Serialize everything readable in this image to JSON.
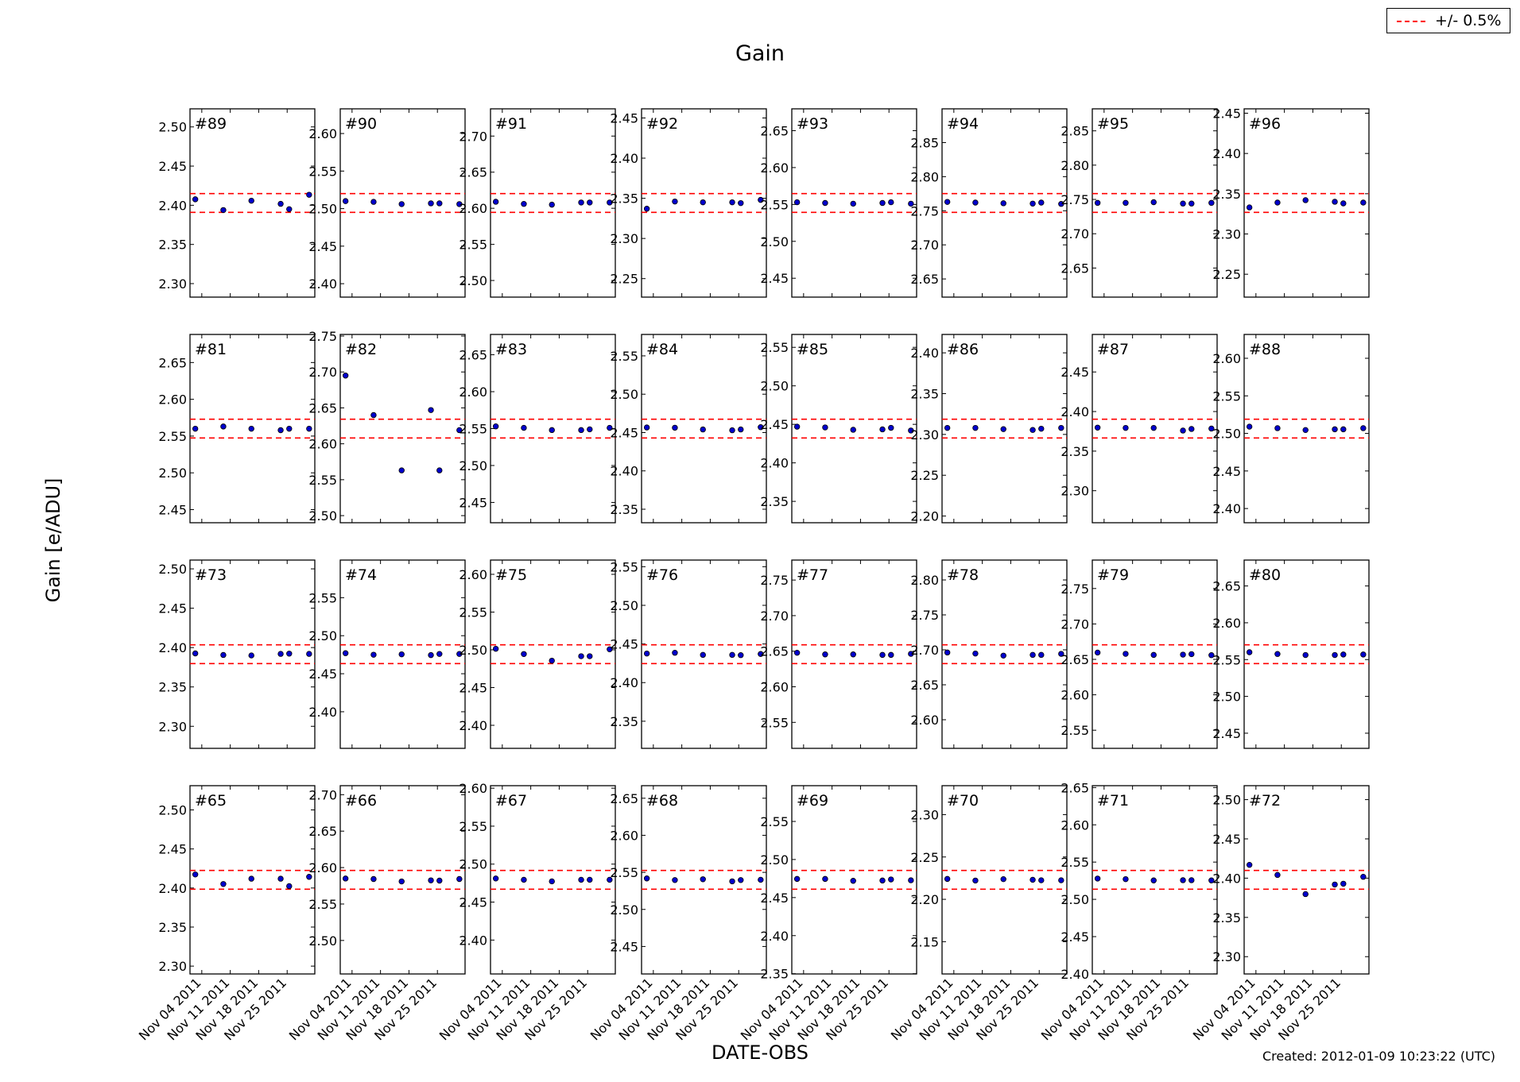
{
  "chart_data": {
    "type": "scatter",
    "title": "Gain",
    "xlabel": "DATE-OBS",
    "ylabel": "Gain [e/ADU]",
    "footer": "Created: 2012-01-09 10:23:22 (UTC)",
    "legend": {
      "label": "+/- 0.5%",
      "placement": "top-right",
      "color": "#ff0000"
    },
    "band_fraction": 0.005,
    "ylim_fraction": 0.05,
    "ytick_step": 0.05,
    "x_unit": "day of November 2011",
    "xlim": [
      1.1,
      31.8
    ],
    "x": [
      2.4,
      9.3,
      16.2,
      23.4,
      25.5,
      30.4
    ],
    "xticks": [
      {
        "value": 4,
        "label": "Nov 04 2011"
      },
      {
        "value": 11,
        "label": "Nov 11 2011"
      },
      {
        "value": 18,
        "label": "Nov 18 2011"
      },
      {
        "value": 25,
        "label": "Nov 25 2011"
      }
    ],
    "point_color": "#0000cc",
    "panels": [
      {
        "label": "#89",
        "values": [
          2.4076,
          2.3939,
          2.4058,
          2.4018,
          2.395,
          2.4134
        ]
      },
      {
        "label": "#90",
        "values": [
          2.51,
          2.509,
          2.506,
          2.507,
          2.507,
          2.506
        ]
      },
      {
        "label": "#91",
        "values": [
          2.609,
          2.606,
          2.605,
          2.608,
          2.608,
          2.608
        ]
      },
      {
        "label": "#92",
        "values": [
          2.337,
          2.346,
          2.345,
          2.345,
          2.344,
          2.348
        ]
      },
      {
        "label": "#93",
        "values": [
          2.553,
          2.552,
          2.551,
          2.552,
          2.553,
          2.551
        ]
      },
      {
        "label": "#94",
        "values": [
          2.763,
          2.762,
          2.761,
          2.7605,
          2.762,
          2.76
        ]
      },
      {
        "label": "#95",
        "values": [
          2.745,
          2.745,
          2.746,
          2.744,
          2.744,
          2.745
        ]
      },
      {
        "label": "#96",
        "values": [
          2.333,
          2.339,
          2.342,
          2.34,
          2.338,
          2.339
        ]
      },
      {
        "label": "#81",
        "values": [
          2.56,
          2.563,
          2.56,
          2.558,
          2.56,
          2.56
        ]
      },
      {
        "label": "#82",
        "values": [
          2.695,
          2.64,
          2.563,
          2.647,
          2.563,
          2.619
        ]
      },
      {
        "label": "#83",
        "values": [
          2.553,
          2.551,
          2.548,
          2.548,
          2.549,
          2.551
        ]
      },
      {
        "label": "#84",
        "values": [
          2.4566,
          2.4563,
          2.454,
          2.453,
          2.454,
          2.457
        ]
      },
      {
        "label": "#85",
        "values": [
          2.447,
          2.446,
          2.443,
          2.4435,
          2.4455,
          2.442
        ]
      },
      {
        "label": "#86",
        "values": [
          2.308,
          2.308,
          2.3065,
          2.3055,
          2.307,
          2.308
        ]
      },
      {
        "label": "#87",
        "values": [
          2.3797,
          2.3793,
          2.3793,
          2.376,
          2.378,
          2.3785
        ]
      },
      {
        "label": "#88",
        "values": [
          2.509,
          2.507,
          2.5045,
          2.5055,
          2.5055,
          2.507
        ]
      },
      {
        "label": "#73",
        "values": [
          2.3926,
          2.3906,
          2.39,
          2.392,
          2.3923,
          2.392
        ]
      },
      {
        "label": "#74",
        "values": [
          2.477,
          2.475,
          2.4755,
          2.4745,
          2.476,
          2.476
        ]
      },
      {
        "label": "#75",
        "values": [
          2.5014,
          2.4944,
          2.4856,
          2.4915,
          2.4915,
          2.5007
        ]
      },
      {
        "label": "#76",
        "values": [
          2.4376,
          2.4386,
          2.4359,
          2.4359,
          2.4355,
          2.437
        ]
      },
      {
        "label": "#77",
        "values": [
          2.6478,
          2.6455,
          2.6455,
          2.6448,
          2.6448,
          2.6463
        ]
      },
      {
        "label": "#78",
        "values": [
          2.6962,
          2.6947,
          2.6917,
          2.6928,
          2.6928,
          2.6943
        ]
      },
      {
        "label": "#79",
        "values": [
          2.6596,
          2.6578,
          2.6563,
          2.6567,
          2.6574,
          2.6559
        ]
      },
      {
        "label": "#80",
        "values": [
          2.56,
          2.5576,
          2.5562,
          2.5562,
          2.5569,
          2.5569
        ]
      },
      {
        "label": "#65",
        "values": [
          2.4173,
          2.4051,
          2.4119,
          2.4119,
          2.4024,
          2.4143
        ]
      },
      {
        "label": "#66",
        "values": [
          2.585,
          2.5843,
          2.581,
          2.5825,
          2.5821,
          2.5843
        ]
      },
      {
        "label": "#67",
        "values": [
          2.4811,
          2.4794,
          2.4773,
          2.4794,
          2.4794,
          2.4794
        ]
      },
      {
        "label": "#68",
        "values": [
          2.5418,
          2.5396,
          2.5407,
          2.5379,
          2.5396,
          2.54
        ]
      },
      {
        "label": "#69",
        "values": [
          2.4745,
          2.4745,
          2.472,
          2.4724,
          2.4738,
          2.4727
        ]
      },
      {
        "label": "#70",
        "values": [
          2.2241,
          2.2222,
          2.2238,
          2.2231,
          2.2225,
          2.2225
        ]
      },
      {
        "label": "#71",
        "values": [
          2.5279,
          2.5271,
          2.5254,
          2.5257,
          2.5257,
          2.5254
        ]
      },
      {
        "label": "#72",
        "values": [
          2.4169,
          2.4041,
          2.3797,
          2.3919,
          2.3929,
          2.4017
        ]
      }
    ]
  }
}
